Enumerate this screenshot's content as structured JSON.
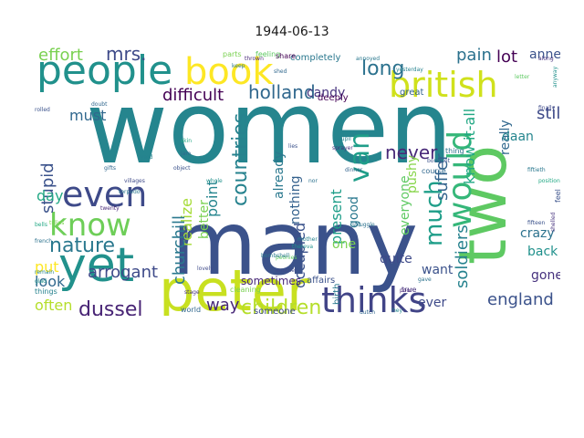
{
  "title": "1944-06-13",
  "words": [
    {
      "text": "women",
      "color": "#25858e"
    },
    {
      "text": "many",
      "color": "#3b528b"
    },
    {
      "text": "two",
      "color": "#5ec962"
    },
    {
      "text": "peter",
      "color": "#c8e020"
    },
    {
      "text": "people",
      "color": "#21918c"
    },
    {
      "text": "book",
      "color": "#fde725"
    },
    {
      "text": "british",
      "color": "#d0e11c"
    },
    {
      "text": "yet",
      "color": "#21918c"
    },
    {
      "text": "thinks",
      "color": "#414487"
    },
    {
      "text": "even",
      "color": "#3e4a89"
    },
    {
      "text": "know",
      "color": "#6ece58"
    },
    {
      "text": "would",
      "color": "#35b779"
    },
    {
      "text": "nature",
      "color": "#2a788e"
    },
    {
      "text": "holland",
      "color": "#31688e"
    },
    {
      "text": "dussel",
      "color": "#482475"
    },
    {
      "text": "england",
      "color": "#3b528b"
    },
    {
      "text": "children",
      "color": "#b5de2b"
    },
    {
      "text": "van",
      "color": "#1f9e89"
    },
    {
      "text": "much",
      "color": "#1f9e89"
    },
    {
      "text": "long",
      "color": "#2c728e"
    },
    {
      "text": "mrs.",
      "color": "#3e4a89"
    },
    {
      "text": "effort",
      "color": "#7ad151"
    },
    {
      "text": "difficult",
      "color": "#440154"
    },
    {
      "text": "must",
      "color": "#31688e"
    },
    {
      "text": "stupid",
      "color": "#3b528b"
    },
    {
      "text": "day",
      "color": "#22a884"
    },
    {
      "text": "never",
      "color": "#482878"
    },
    {
      "text": "suffer",
      "color": "#33638d"
    },
    {
      "text": "pain",
      "color": "#2c728e"
    },
    {
      "text": "lot",
      "color": "#440154"
    },
    {
      "text": "annex",
      "color": "#3b528b"
    },
    {
      "text": "still",
      "color": "#3e4a89"
    },
    {
      "text": "candy",
      "color": "#46327e"
    },
    {
      "text": "countries",
      "color": "#26828e"
    },
    {
      "text": "point",
      "color": "#25858e"
    },
    {
      "text": "realize",
      "color": "#a5db36"
    },
    {
      "text": "churchill",
      "color": "#2a788e"
    },
    {
      "text": "arrogant",
      "color": "#3e4a89"
    },
    {
      "text": "often",
      "color": "#b5de2b"
    },
    {
      "text": "look",
      "color": "#31688e"
    },
    {
      "text": "put",
      "color": "#fde725"
    },
    {
      "text": "way",
      "color": "#482878"
    },
    {
      "text": "better",
      "color": "#7ad151"
    },
    {
      "text": "already",
      "color": "#2a788e"
    },
    {
      "text": "nothing",
      "color": "#34618d"
    },
    {
      "text": "occupied",
      "color": "#3b528b"
    },
    {
      "text": "present",
      "color": "#1f9e89"
    },
    {
      "text": "good",
      "color": "#2a788e"
    },
    {
      "text": "everyone",
      "color": "#5ec962"
    },
    {
      "text": "pushy",
      "color": "#86d549"
    },
    {
      "text": "quite",
      "color": "#3e4a89"
    },
    {
      "text": "know-it-all",
      "color": "#22a884"
    },
    {
      "text": "really",
      "color": "#31688e"
    },
    {
      "text": "soldiers",
      "color": "#26828e"
    },
    {
      "text": "daan",
      "color": "#25858e"
    },
    {
      "text": "crazy",
      "color": "#2c728e"
    },
    {
      "text": "back",
      "color": "#21918c"
    },
    {
      "text": "want",
      "color": "#3b528b"
    },
    {
      "text": "ever",
      "color": "#3e4a89"
    },
    {
      "text": "gone",
      "color": "#46327e"
    },
    {
      "text": "one",
      "color": "#7ad151"
    },
    {
      "text": "sometimes",
      "color": "#482878"
    },
    {
      "text": "affairs",
      "color": "#3b528b"
    },
    {
      "text": "birth",
      "color": "#2a788e"
    },
    {
      "text": "course",
      "color": "#31688e"
    },
    {
      "text": "great",
      "color": "#33638d"
    },
    {
      "text": "true",
      "color": "#46327e"
    },
    {
      "text": "deeply",
      "color": "#440154"
    },
    {
      "text": "completely",
      "color": "#2a788e"
    },
    {
      "text": "parts",
      "color": "#7ad151"
    },
    {
      "text": "feeling",
      "color": "#5ec962"
    },
    {
      "text": "share",
      "color": "#440154"
    },
    {
      "text": "thing",
      "color": "#2c728e"
    },
    {
      "text": "feel",
      "color": "#3b528b"
    },
    {
      "text": "someone",
      "color": "#3e4a89"
    },
    {
      "text": "world",
      "color": "#31688e"
    },
    {
      "text": "things",
      "color": "#26828e"
    },
    {
      "text": "glad",
      "color": "#21918c"
    },
    {
      "text": "remain",
      "color": "#25858e"
    },
    {
      "text": "cleaning",
      "color": "#7ad151"
    },
    {
      "text": "position",
      "color": "#22a884"
    },
    {
      "text": "shelled",
      "color": "#46327e"
    },
    {
      "text": "fiftieth",
      "color": "#2a788e"
    },
    {
      "text": "bouquet",
      "color": "#3b528b"
    },
    {
      "text": "dinner",
      "color": "#33638d"
    },
    {
      "text": "gave",
      "color": "#2c728e"
    },
    {
      "text": "poor",
      "color": "#482878"
    },
    {
      "text": "dutch",
      "color": "#31688e"
    },
    {
      "text": "hey",
      "color": "#25858e"
    },
    {
      "text": "finally",
      "color": "#3e4a89"
    },
    {
      "text": "yesterday",
      "color": "#26828e"
    },
    {
      "text": "annoyed",
      "color": "#2a788e"
    },
    {
      "text": "anyway",
      "color": "#21918c"
    },
    {
      "text": "along",
      "color": "#46327e"
    },
    {
      "text": "letter",
      "color": "#5ec962"
    },
    {
      "text": "fifteen",
      "color": "#3b528b"
    },
    {
      "text": "gifts",
      "color": "#31688e"
    },
    {
      "text": "french",
      "color": "#2c728e"
    },
    {
      "text": "bells",
      "color": "#22a884"
    },
    {
      "text": "tulips",
      "color": "#7ad151"
    },
    {
      "text": "yard",
      "color": "#26828e"
    },
    {
      "text": "villages",
      "color": "#3e4a89"
    },
    {
      "text": "twenty",
      "color": "#482878"
    },
    {
      "text": "torpedo",
      "color": "#2a788e"
    },
    {
      "text": "doubt",
      "color": "#31688e"
    },
    {
      "text": "rolled",
      "color": "#3b528b"
    },
    {
      "text": "stage",
      "color": "#46327e"
    },
    {
      "text": "struggle",
      "color": "#2c728e"
    },
    {
      "text": "thereva",
      "color": "#21918c"
    },
    {
      "text": "peonies",
      "color": "#5ec962"
    },
    {
      "text": "another",
      "color": "#3e4a89"
    },
    {
      "text": "mother",
      "color": "#26828e"
    },
    {
      "text": "bombshell",
      "color": "#2a788e"
    },
    {
      "text": "skin",
      "color": "#22a884"
    },
    {
      "text": "jam",
      "color": "#31688e"
    },
    {
      "text": "object",
      "color": "#3b528b"
    },
    {
      "text": "nor",
      "color": "#2c728e"
    },
    {
      "text": "sprayer",
      "color": "#46327e"
    },
    {
      "text": "pupil",
      "color": "#26828e"
    },
    {
      "text": "lovely",
      "color": "#3e4a89"
    },
    {
      "text": "whole",
      "color": "#21918c"
    },
    {
      "text": "thrown",
      "color": "#482878"
    },
    {
      "text": "keep",
      "color": "#2a788e"
    },
    {
      "text": "shed",
      "color": "#31688e"
    },
    {
      "text": "lies",
      "color": "#3b528b"
    }
  ]
}
